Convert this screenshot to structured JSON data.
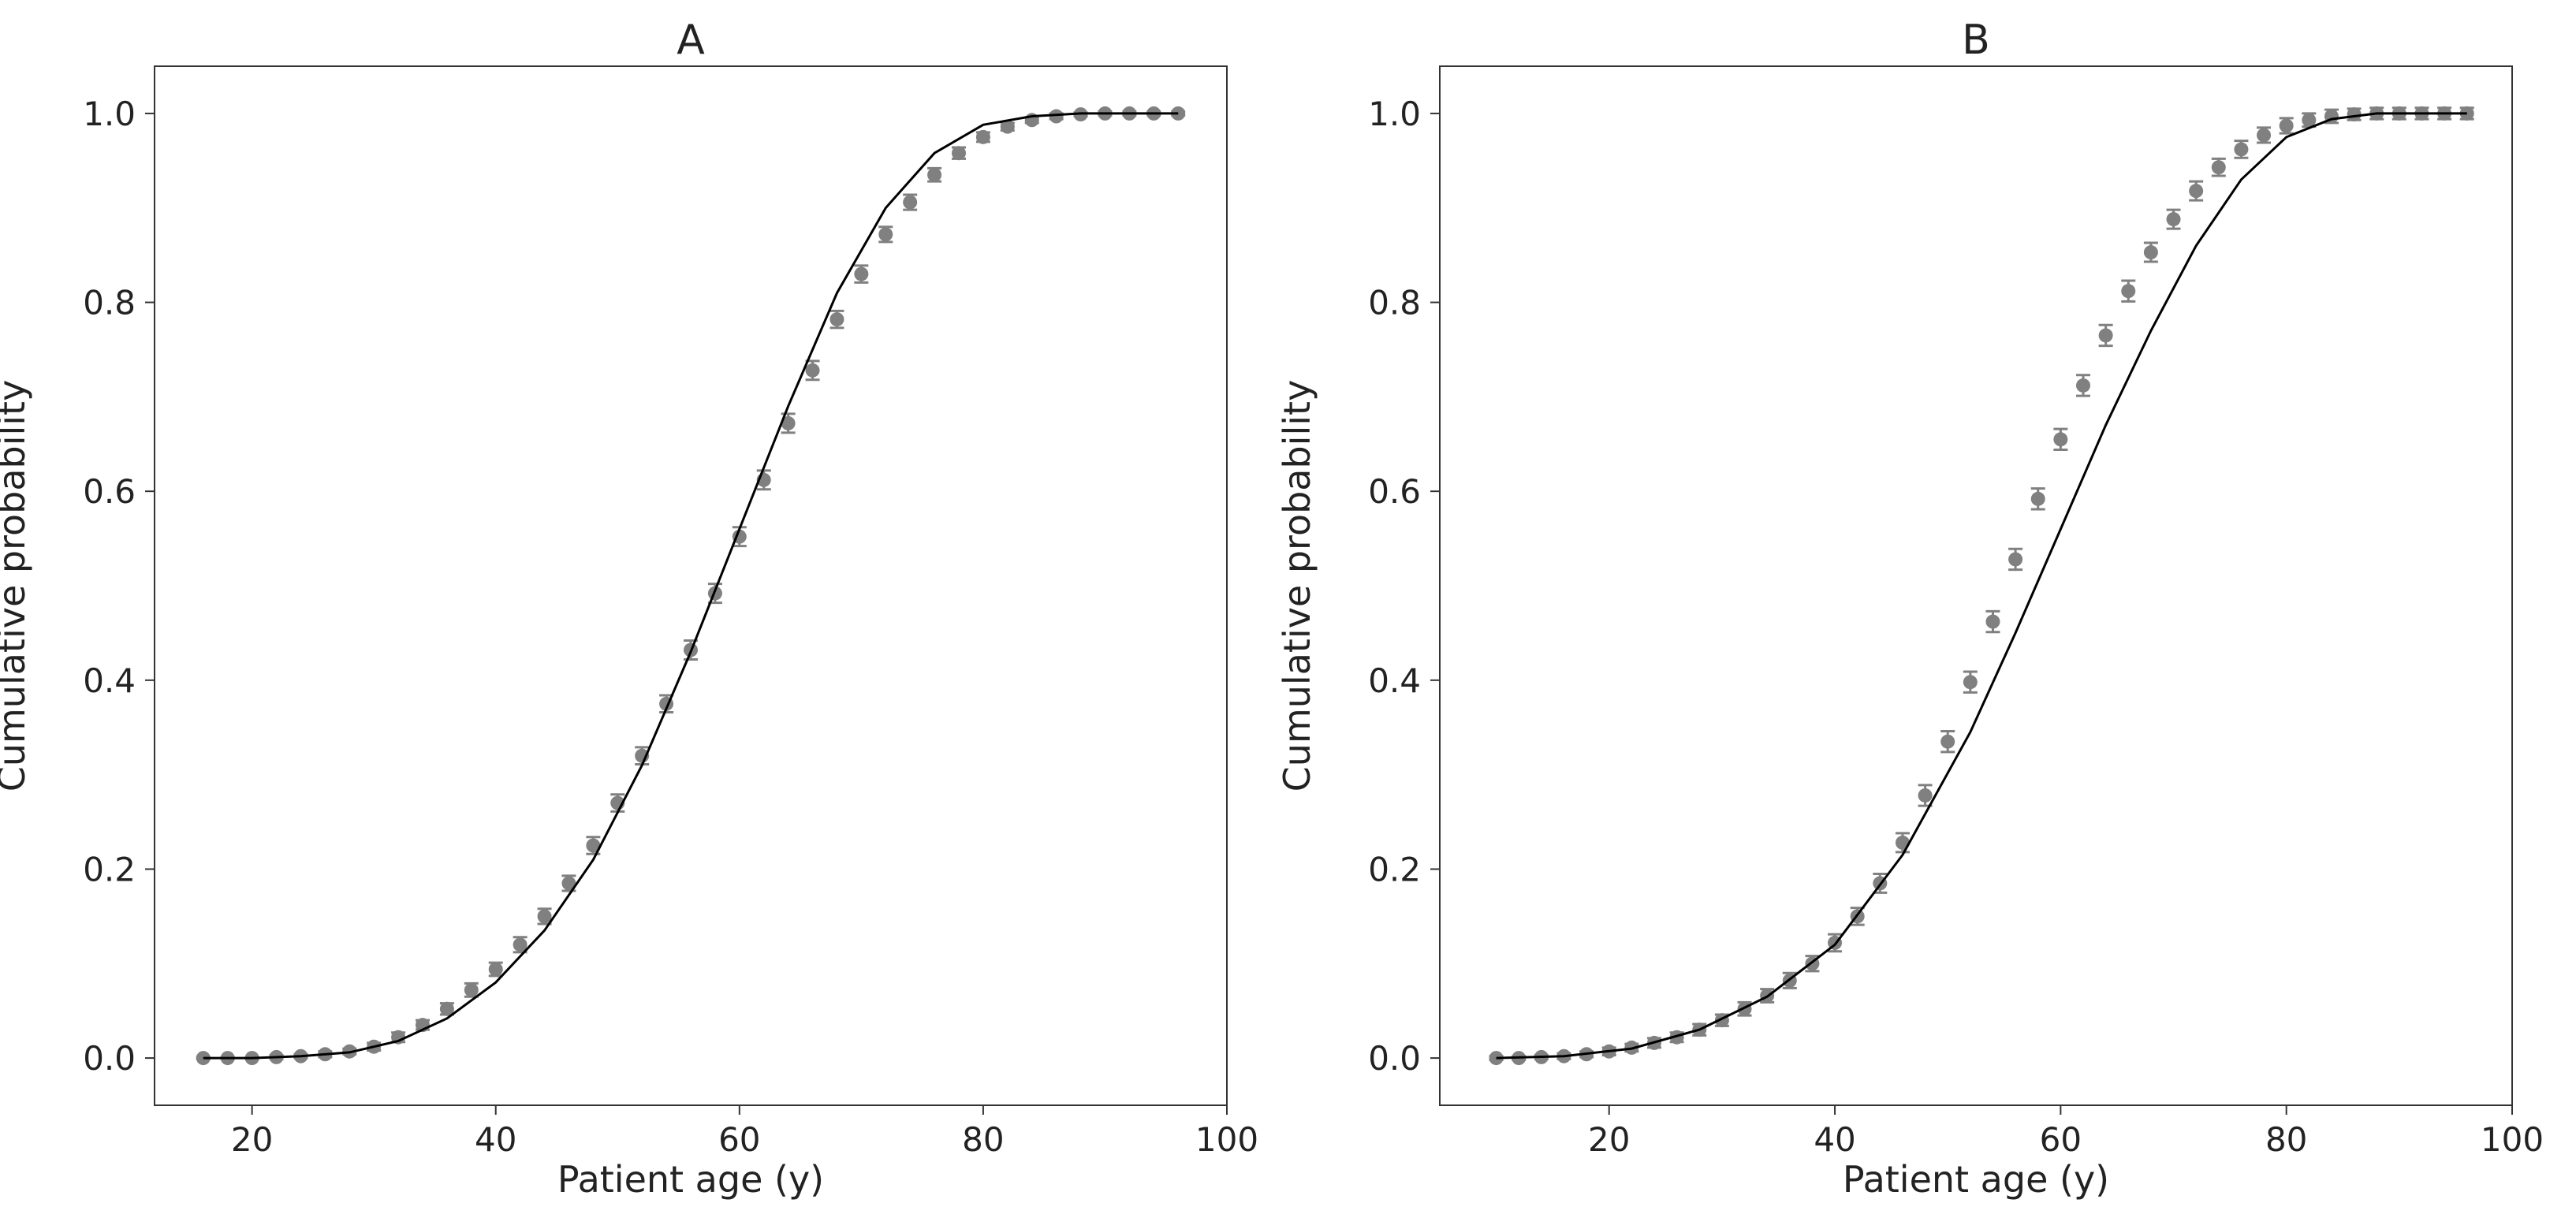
{
  "chart_data": [
    {
      "type": "scatter",
      "title": "A",
      "xlabel": "Patient age (y)",
      "ylabel": "Cumulative probability",
      "xlim": [
        12,
        100
      ],
      "ylim": [
        -0.05,
        1.05
      ],
      "x_ticks": [
        "20",
        "40",
        "60",
        "80",
        "100"
      ],
      "y_ticks": [
        "0.0",
        "0.2",
        "0.4",
        "0.6",
        "0.8",
        "1.0"
      ],
      "grid": false,
      "series": [
        {
          "kind": "points_with_error_bars",
          "color": "#808080",
          "x": [
            16,
            18,
            20,
            22,
            24,
            26,
            28,
            30,
            32,
            34,
            36,
            38,
            40,
            42,
            44,
            46,
            48,
            50,
            52,
            54,
            56,
            58,
            60,
            62,
            64,
            66,
            68,
            70,
            72,
            74,
            76,
            78,
            80,
            82,
            84,
            86,
            88,
            90,
            92,
            94,
            96
          ],
          "y": [
            0.0,
            0.0,
            0.0,
            0.001,
            0.002,
            0.004,
            0.007,
            0.012,
            0.022,
            0.035,
            0.052,
            0.072,
            0.094,
            0.12,
            0.15,
            0.185,
            0.225,
            0.27,
            0.32,
            0.375,
            0.432,
            0.492,
            0.552,
            0.612,
            0.672,
            0.728,
            0.782,
            0.83,
            0.872,
            0.906,
            0.935,
            0.958,
            0.975,
            0.986,
            0.993,
            0.997,
            0.999,
            1.0,
            1.0,
            1.0,
            1.0
          ],
          "err": [
            0.001,
            0.001,
            0.001,
            0.002,
            0.002,
            0.003,
            0.003,
            0.004,
            0.005,
            0.005,
            0.006,
            0.007,
            0.007,
            0.008,
            0.008,
            0.008,
            0.009,
            0.009,
            0.009,
            0.009,
            0.01,
            0.01,
            0.01,
            0.01,
            0.01,
            0.01,
            0.009,
            0.009,
            0.008,
            0.008,
            0.007,
            0.006,
            0.005,
            0.004,
            0.003,
            0.003,
            0.002,
            0.002,
            0.002,
            0.002,
            0.002
          ]
        },
        {
          "kind": "line",
          "color": "#000000",
          "x": [
            16,
            20,
            24,
            28,
            32,
            36,
            40,
            44,
            48,
            52,
            56,
            60,
            64,
            68,
            72,
            76,
            80,
            84,
            88,
            92,
            96
          ],
          "y": [
            0.0,
            0.0,
            0.002,
            0.006,
            0.018,
            0.042,
            0.08,
            0.135,
            0.21,
            0.31,
            0.43,
            0.56,
            0.69,
            0.81,
            0.9,
            0.958,
            0.988,
            0.997,
            1.0,
            1.0,
            1.0
          ]
        }
      ]
    },
    {
      "type": "scatter",
      "title": "B",
      "xlabel": "Patient age (y)",
      "ylabel": "Cumulative probability",
      "xlim": [
        5,
        100
      ],
      "ylim": [
        -0.05,
        1.05
      ],
      "x_ticks": [
        "20",
        "40",
        "60",
        "80",
        "100"
      ],
      "y_ticks": [
        "0.0",
        "0.2",
        "0.4",
        "0.6",
        "0.8",
        "1.0"
      ],
      "grid": false,
      "series": [
        {
          "kind": "points_with_error_bars",
          "color": "#808080",
          "x": [
            10,
            12,
            14,
            16,
            18,
            20,
            22,
            24,
            26,
            28,
            30,
            32,
            34,
            36,
            38,
            40,
            42,
            44,
            46,
            48,
            50,
            52,
            54,
            56,
            58,
            60,
            62,
            64,
            66,
            68,
            70,
            72,
            74,
            76,
            78,
            80,
            82,
            84,
            86,
            88,
            90,
            92,
            94,
            96
          ],
          "y": [
            0.0,
            0.0,
            0.001,
            0.002,
            0.004,
            0.007,
            0.011,
            0.016,
            0.022,
            0.03,
            0.04,
            0.052,
            0.066,
            0.082,
            0.1,
            0.122,
            0.15,
            0.185,
            0.228,
            0.278,
            0.335,
            0.398,
            0.462,
            0.528,
            0.592,
            0.655,
            0.712,
            0.765,
            0.812,
            0.853,
            0.888,
            0.918,
            0.943,
            0.962,
            0.977,
            0.987,
            0.993,
            0.997,
            0.999,
            1.0,
            1.0,
            1.0,
            1.0,
            1.0
          ],
          "err": [
            0.002,
            0.002,
            0.002,
            0.003,
            0.003,
            0.004,
            0.004,
            0.005,
            0.005,
            0.006,
            0.006,
            0.007,
            0.007,
            0.008,
            0.008,
            0.009,
            0.009,
            0.01,
            0.01,
            0.011,
            0.011,
            0.011,
            0.011,
            0.011,
            0.011,
            0.011,
            0.011,
            0.011,
            0.011,
            0.01,
            0.01,
            0.01,
            0.009,
            0.009,
            0.008,
            0.008,
            0.007,
            0.007,
            0.006,
            0.006,
            0.006,
            0.006,
            0.006,
            0.006
          ]
        },
        {
          "kind": "line",
          "color": "#000000",
          "x": [
            10,
            16,
            22,
            28,
            34,
            40,
            46,
            52,
            56,
            60,
            64,
            68,
            72,
            76,
            80,
            84,
            88,
            92,
            96
          ],
          "y": [
            0.0,
            0.002,
            0.01,
            0.03,
            0.065,
            0.12,
            0.215,
            0.345,
            0.45,
            0.56,
            0.67,
            0.77,
            0.86,
            0.93,
            0.975,
            0.994,
            1.0,
            1.0,
            1.0
          ]
        }
      ]
    }
  ]
}
